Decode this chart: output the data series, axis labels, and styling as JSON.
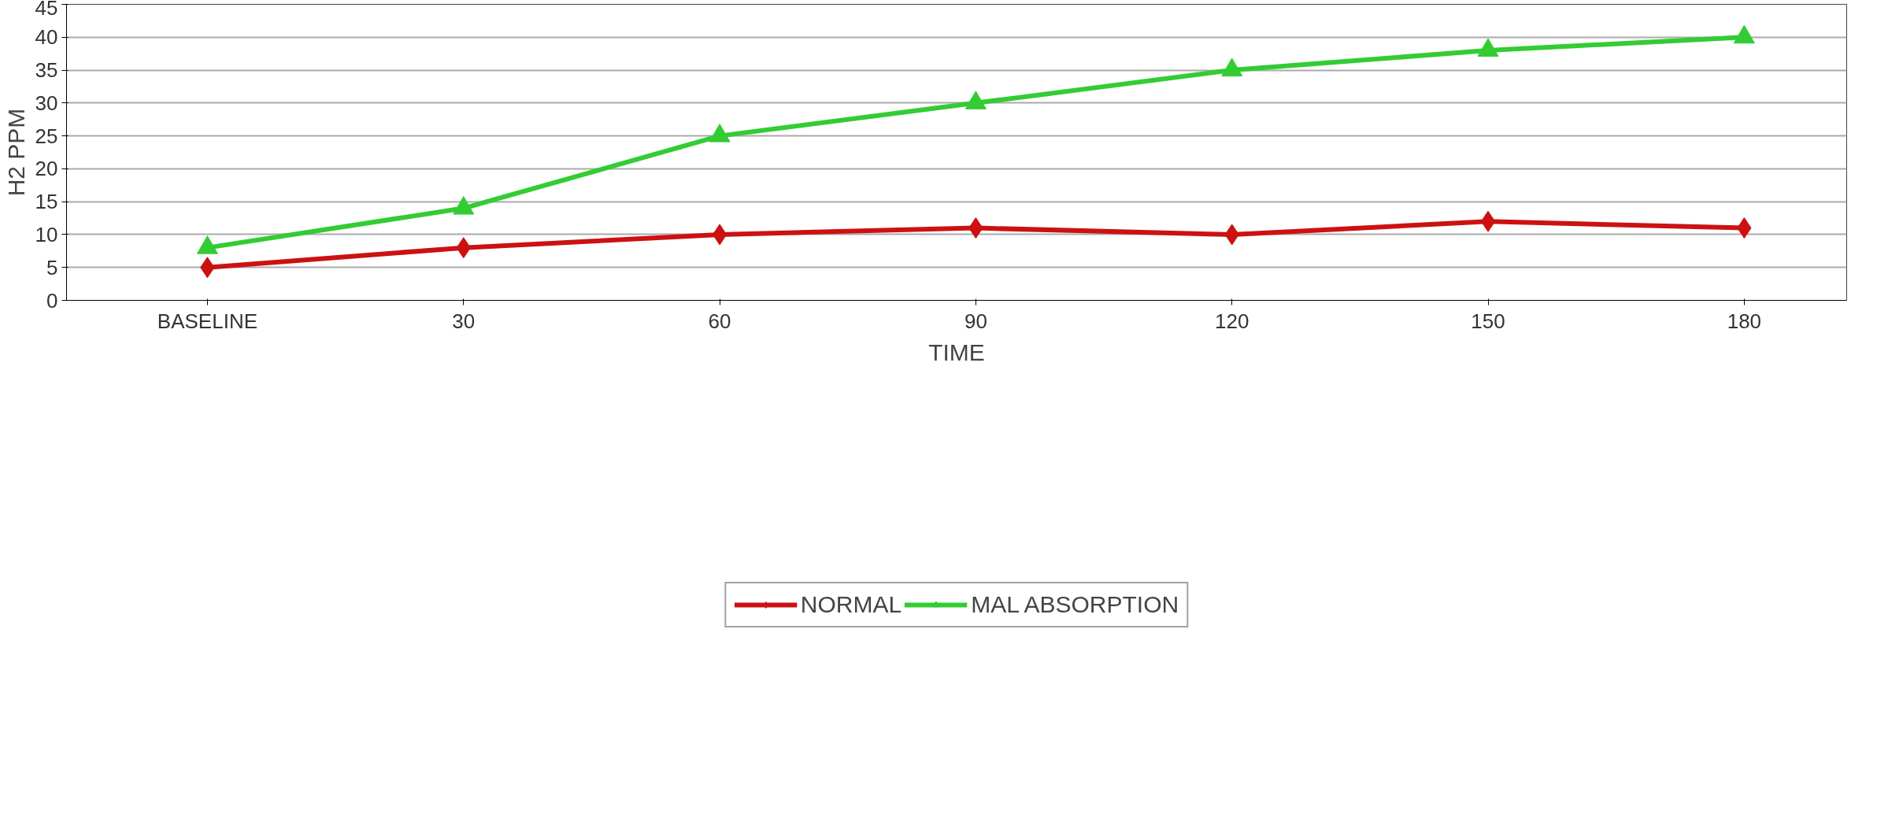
{
  "chart_data": {
    "type": "line",
    "xlabel": "TIME",
    "ylabel": "H2 PPM",
    "categories": [
      "BASELINE",
      "30",
      "60",
      "90",
      "120",
      "150",
      "180"
    ],
    "series": [
      {
        "name": "NORMAL",
        "color": "#cc1111",
        "marker": "diamond",
        "values": [
          5,
          8,
          10,
          11,
          10,
          12,
          11
        ]
      },
      {
        "name": "MAL ABSORPTION",
        "color": "#33cc33",
        "marker": "triangle",
        "values": [
          8,
          14,
          25,
          30,
          35,
          38,
          40
        ]
      }
    ],
    "ylim": [
      0,
      45
    ],
    "yticks": [
      0,
      5,
      10,
      15,
      20,
      25,
      30,
      35,
      40,
      45
    ],
    "grid": "y",
    "legend": "bottom",
    "line_style": "solid"
  }
}
